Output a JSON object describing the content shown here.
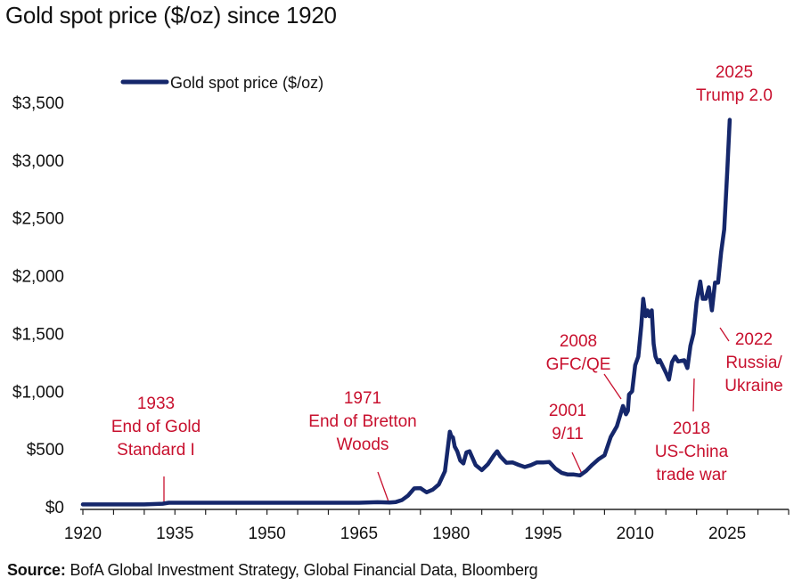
{
  "colors": {
    "line": "#15276b",
    "annotation": "#c8102e",
    "axis": "#222222",
    "text": "#111111"
  },
  "footer": {
    "source_label": "Source:",
    "source_text": "BofA Global Investment Strategy, Global Financial Data, Bloomberg"
  },
  "chart_data": {
    "type": "line",
    "title": "Gold spot price ($/oz) since 1920",
    "xlabel": "",
    "ylabel": "",
    "xlim": [
      1920,
      2035
    ],
    "ylim": [
      0,
      3500
    ],
    "x_ticks": [
      1920,
      1935,
      1950,
      1965,
      1980,
      1995,
      2010,
      2025
    ],
    "y_ticks": [
      {
        "value": 0,
        "label": "$0"
      },
      {
        "value": 500,
        "label": "$500"
      },
      {
        "value": 1000,
        "label": "$1,000"
      },
      {
        "value": 1500,
        "label": "$1,500"
      },
      {
        "value": 2000,
        "label": "$2,000"
      },
      {
        "value": 2500,
        "label": "$2,500"
      },
      {
        "value": 3000,
        "label": "$3,000"
      },
      {
        "value": 3500,
        "label": "$3,500"
      }
    ],
    "grid": false,
    "legend": {
      "position": "top-left",
      "label": "Gold spot price ($/oz)"
    },
    "series": [
      {
        "name": "Gold spot price ($/oz)",
        "x": [
          1920,
          1925,
          1930,
          1933,
          1934,
          1940,
          1950,
          1960,
          1965,
          1968,
          1970,
          1971,
          1972,
          1973,
          1974,
          1975,
          1976,
          1977,
          1978,
          1979,
          1979.8,
          1980,
          1980.3,
          1980.6,
          1981,
          1981.5,
          1982,
          1982.5,
          1983,
          1984,
          1985,
          1986,
          1987,
          1987.5,
          1988,
          1989,
          1990,
          1991,
          1992,
          1993,
          1994,
          1995,
          1996,
          1997,
          1998,
          1999,
          2000,
          2001,
          2002,
          2003,
          2004,
          2005,
          2006,
          2007,
          2008,
          2008.5,
          2008.8,
          2009,
          2009.5,
          2010,
          2010.5,
          2011,
          2011.3,
          2011.7,
          2012,
          2012.3,
          2012.7,
          2013,
          2013.3,
          2013.7,
          2014,
          2015,
          2015.5,
          2016,
          2016.5,
          2017,
          2018,
          2018.5,
          2019,
          2019.5,
          2020,
          2020.6,
          2021,
          2021.5,
          2022,
          2022.5,
          2023,
          2023.5,
          2024,
          2024.5,
          2025,
          2025.4
        ],
        "values": [
          20,
          20,
          20,
          26,
          35,
          35,
          35,
          35,
          35,
          39,
          36,
          41,
          58,
          97,
          159,
          161,
          125,
          148,
          193,
          307,
          650,
          615,
          600,
          520,
          480,
          400,
          375,
          470,
          480,
          360,
          317,
          368,
          447,
          480,
          437,
          381,
          384,
          362,
          344,
          360,
          384,
          384,
          388,
          331,
          294,
          279,
          279,
          271,
          310,
          363,
          410,
          445,
          603,
          695,
          872,
          800,
          830,
          972,
          1000,
          1225,
          1300,
          1572,
          1800,
          1650,
          1700,
          1650,
          1700,
          1411,
          1300,
          1250,
          1270,
          1160,
          1100,
          1251,
          1300,
          1257,
          1268,
          1200,
          1393,
          1500,
          1770,
          1950,
          1800,
          1800,
          1900,
          1700,
          1940,
          1940,
          2200,
          2400,
          2900,
          3350
        ]
      }
    ],
    "annotations": [
      {
        "id": "1933",
        "lines": [
          "1933",
          "End of Gold",
          "Standard I"
        ]
      },
      {
        "id": "1971",
        "lines": [
          "1971",
          "End of Bretton",
          "Woods"
        ]
      },
      {
        "id": "2001",
        "lines": [
          "2001",
          "9/11"
        ]
      },
      {
        "id": "2008",
        "lines": [
          "2008",
          "GFC/QE"
        ]
      },
      {
        "id": "2018",
        "lines": [
          "2018",
          "US-China",
          "trade war"
        ]
      },
      {
        "id": "2022",
        "lines": [
          "2022",
          "Russia/",
          "Ukraine"
        ]
      },
      {
        "id": "2025",
        "lines": [
          "2025",
          "Trump 2.0"
        ]
      }
    ]
  }
}
